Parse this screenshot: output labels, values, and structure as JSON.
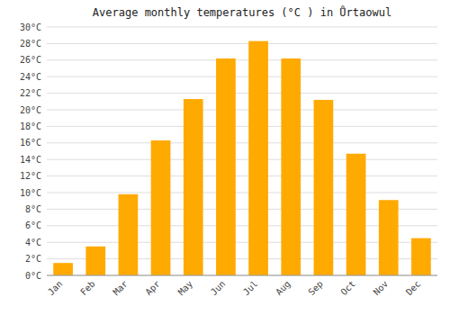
{
  "chart_data": {
    "type": "bar",
    "title": "Average monthly temperatures (°C ) in Ůrtaowul",
    "categories": [
      "Jan",
      "Feb",
      "Mar",
      "Apr",
      "May",
      "Jun",
      "Jul",
      "Aug",
      "Sep",
      "Oct",
      "Nov",
      "Dec"
    ],
    "values": [
      1.5,
      3.5,
      9.8,
      16.3,
      21.3,
      26.2,
      28.3,
      26.2,
      21.2,
      14.7,
      9.1,
      4.5
    ],
    "color": "#FFAA00",
    "ylim": [
      0,
      30
    ],
    "yticks": [
      {
        "value": 0,
        "label": "0°C"
      },
      {
        "value": 2,
        "label": "2°C"
      },
      {
        "value": 4,
        "label": "4°C"
      },
      {
        "value": 6,
        "label": "6°C"
      },
      {
        "value": 8,
        "label": "8°C"
      },
      {
        "value": 10,
        "label": "10°C"
      },
      {
        "value": 12,
        "label": "12°C"
      },
      {
        "value": 14,
        "label": "14°C"
      },
      {
        "value": 16,
        "label": "16°C"
      },
      {
        "value": 18,
        "label": "18°C"
      },
      {
        "value": 20,
        "label": "20°C"
      },
      {
        "value": 22,
        "label": "22°C"
      },
      {
        "value": 24,
        "label": "24°C"
      },
      {
        "value": 26,
        "label": "26°C"
      },
      {
        "value": 28,
        "label": "28°C"
      },
      {
        "value": 30,
        "label": "30°C"
      }
    ],
    "grid": true
  }
}
